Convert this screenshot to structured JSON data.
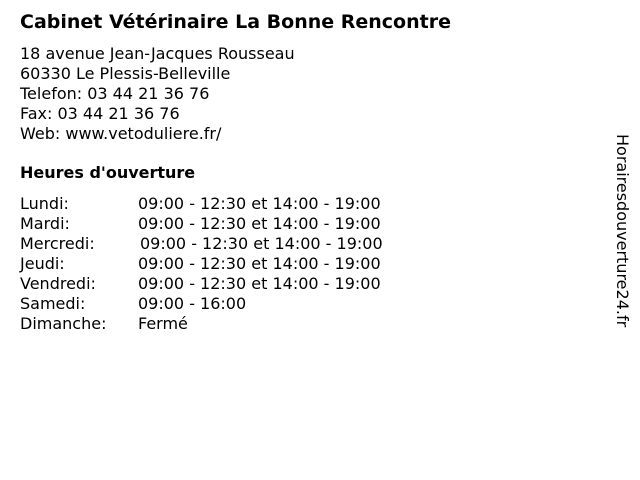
{
  "title": "Cabinet Vétérinaire La Bonne Rencontre",
  "address": {
    "street": "18 avenue Jean-Jacques Rousseau",
    "city": "60330 Le Plessis-Belleville",
    "phone": "Telefon: 03 44 21 36 76",
    "fax": "Fax: 03 44 21 36 76",
    "web": "Web: www.vetoduliere.fr/"
  },
  "hours_heading": "Heures d'ouverture",
  "hours": [
    {
      "day": "Lundi:",
      "time": "09:00 - 12:30 et 14:00 - 19:00"
    },
    {
      "day": "Mardi:",
      "time": "09:00 - 12:30 et 14:00 - 19:00"
    },
    {
      "day": "Mercredi:",
      "time": "09:00 - 12:30 et 14:00 - 19:00"
    },
    {
      "day": "Jeudi:",
      "time": "09:00 - 12:30 et 14:00 - 19:00"
    },
    {
      "day": "Vendredi:",
      "time": "09:00 - 12:30 et 14:00 - 19:00"
    },
    {
      "day": "Samedi:",
      "time": "09:00 - 16:00"
    },
    {
      "day": "Dimanche:",
      "time": "Fermé"
    }
  ],
  "watermark": "Horairesdouverture24.fr"
}
